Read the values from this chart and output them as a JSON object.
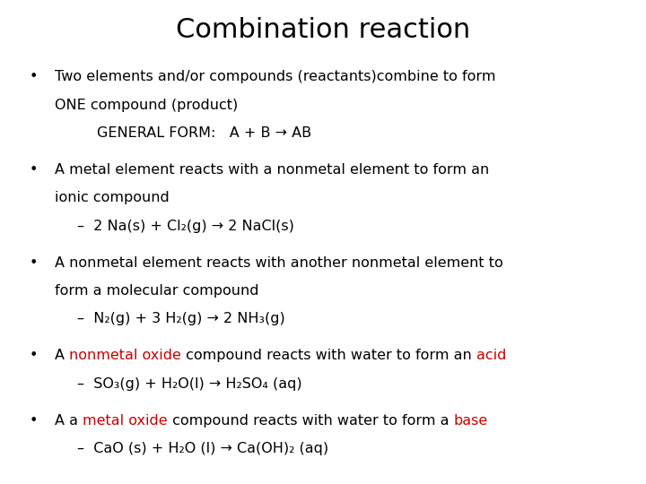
{
  "title": "Combination reaction",
  "title_fontsize": 22,
  "background_color": "#ffffff",
  "text_color": "#000000",
  "red_color": "#cc0000",
  "body_fontsize": 11.5,
  "bullet_char": "•",
  "bullet1_line1": "Two elements and/or compounds (reactants)combine to form",
  "bullet1_line2": "ONE compound (product)",
  "bullet1_line3": "GENERAL FORM:   A + B → AB",
  "bullet2_line1": "A metal element reacts with a nonmetal element to form an",
  "bullet2_line2": "ionic compound",
  "bullet2_sub": "–  2 Na(s) + Cl₂(g) → 2 NaCl(s)",
  "bullet3_line1": "A nonmetal element reacts with another nonmetal element to",
  "bullet3_line2": "form a molecular compound",
  "bullet3_sub": "–  N₂(g) + 3 H₂(g) → 2 NH₃(g)",
  "bullet4_p1": "A ",
  "bullet4_p2": "nonmetal oxide",
  "bullet4_p3": " compound reacts with water to form an ",
  "bullet4_p4": "acid",
  "bullet4_sub": "–  SO₃(g) + H₂O(l) → H₂SO₄ (aq)",
  "bullet5_p1": "A a ",
  "bullet5_p2": "metal oxide",
  "bullet5_p3": " compound reacts with water to form a ",
  "bullet5_p4": "base",
  "bullet5_sub": "–  CaO (s) + H₂O (l) → Ca(OH)₂ (aq)"
}
